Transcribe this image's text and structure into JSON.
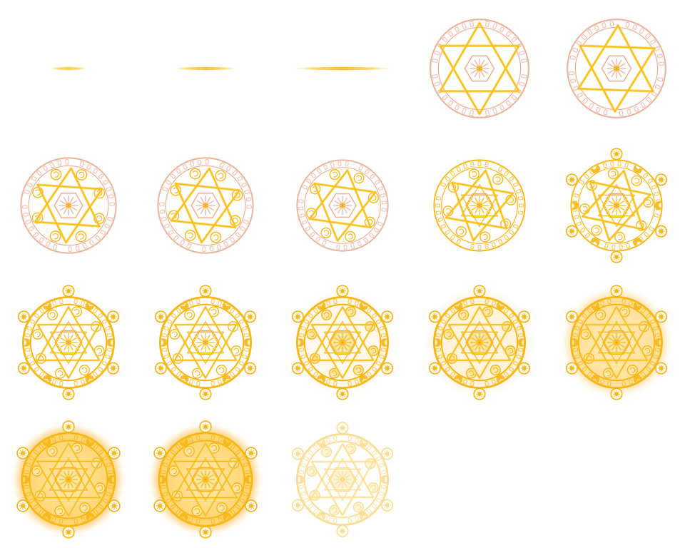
{
  "sheet": {
    "name": "magic-circle-sprite-sheet",
    "columns": 5,
    "rows": 4,
    "background": "#ffffff"
  },
  "colors": {
    "gold": "#f6b716",
    "gold_light": "#ffd24a",
    "gold_pale": "#fde7a6",
    "rune_pink": "#eab39c",
    "glow": "#ffb62e"
  },
  "frames": [
    {
      "type": "line",
      "width": 0.28,
      "intensity": 0.7
    },
    {
      "type": "line",
      "width": 0.48,
      "intensity": 0.85
    },
    {
      "type": "line",
      "width": 0.72,
      "intensity": 1.0
    },
    {
      "type": "circle",
      "stage": 0,
      "rotation": 0,
      "glow": 0,
      "fade": 1,
      "star_offset": -0.06,
      "scale": 0.93
    },
    {
      "type": "circle",
      "stage": 0,
      "rotation": 4,
      "glow": 0,
      "fade": 1,
      "star_offset": -0.04,
      "scale": 0.93
    },
    {
      "type": "circle",
      "stage": 1,
      "rotation": 8,
      "glow": 0,
      "fade": 1,
      "star_offset": 0.0,
      "scale": 0.9
    },
    {
      "type": "circle",
      "stage": 1,
      "rotation": 12,
      "glow": 0,
      "fade": 1,
      "star_offset": 0.0,
      "scale": 0.9
    },
    {
      "type": "circle",
      "stage": 2,
      "rotation": 16,
      "glow": 0,
      "fade": 1,
      "star_offset": 0.0,
      "scale": 0.86
    },
    {
      "type": "circle",
      "stage": 3,
      "rotation": 20,
      "glow": 0,
      "fade": 1,
      "star_offset": 0.0,
      "scale": 0.86
    },
    {
      "type": "circle",
      "stage": 4,
      "rotation": 24,
      "glow": 0,
      "fade": 1,
      "star_offset": 0.0,
      "scale": 0.86
    },
    {
      "type": "circle",
      "stage": 5,
      "rotation": 0,
      "glow": 0,
      "fade": 1,
      "star_offset": 0.0,
      "scale": 0.86
    },
    {
      "type": "circle",
      "stage": 5,
      "rotation": 0,
      "glow": 0,
      "fade": 1,
      "star_offset": 0.0,
      "scale": 0.86
    },
    {
      "type": "circle",
      "stage": 6,
      "rotation": 0,
      "glow": 0.1,
      "fade": 1,
      "star_offset": 0.0,
      "scale": 0.86
    },
    {
      "type": "circle",
      "stage": 6,
      "rotation": 0,
      "glow": 0.2,
      "fade": 1,
      "star_offset": 0.0,
      "scale": 0.86
    },
    {
      "type": "circle",
      "stage": 7,
      "rotation": 0,
      "glow": 0.6,
      "fade": 1,
      "star_offset": 0.0,
      "scale": 0.86
    },
    {
      "type": "circle",
      "stage": 7,
      "rotation": 0,
      "glow": 1.0,
      "fade": 1,
      "star_offset": 0.0,
      "scale": 0.88
    },
    {
      "type": "circle",
      "stage": 7,
      "rotation": 0,
      "glow": 1.0,
      "fade": 1,
      "star_offset": 0.0,
      "scale": 0.88
    },
    {
      "type": "circle",
      "stage": 7,
      "rotation": 0,
      "glow": 0,
      "fade": 0.45,
      "star_offset": 0.0,
      "scale": 0.86
    }
  ]
}
